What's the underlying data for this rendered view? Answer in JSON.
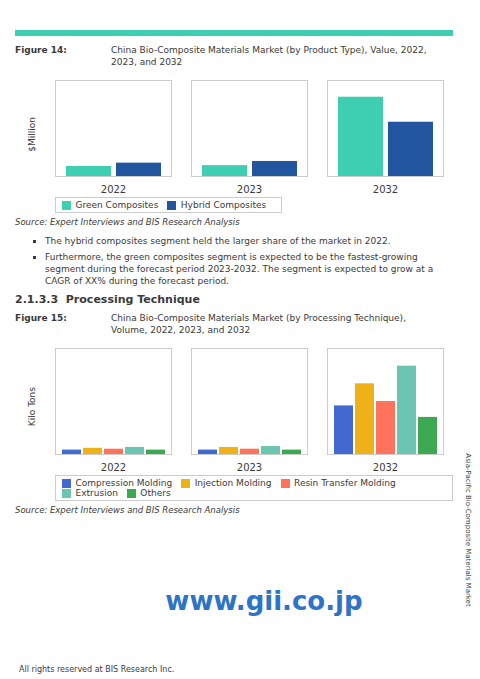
{
  "chart_data": [
    {
      "type": "bar",
      "title": "Figure 14:",
      "subtitle": "China Bio-Composite Materials Market (by Product Type), Value, 2022,\n2023, and 2032",
      "ylabel": "$Million",
      "categories": [
        "2022",
        "2023",
        "2032"
      ],
      "series": [
        {
          "name": "Green Composites",
          "color": "#3ecfb2",
          "values": [
            12,
            13,
            95
          ]
        },
        {
          "name": "Hybrid Composites",
          "color": "#2255a0",
          "values": [
            16,
            18,
            65
          ]
        }
      ],
      "ylim": [
        0,
        115
      ],
      "tick_labels": "x",
      "grid": false,
      "legend": "bottom",
      "annotations": [
        "Source: Expert Interviews and BIS Research Analysis",
        "The hybrid composites segment held the larger share of the market in 2022.",
        "Furthermore, the green composites segment is expected to be the fastest-growing segment during the forecast period 2023-2032. The segment is expected to grow at a CAGR of XX% during the forecast period."
      ]
    },
    {
      "type": "bar",
      "title": "Figure 15:",
      "subtitle": "China Bio-Composite Materials Market (by Processing Technique),\nVolume, 2022, 2023, and 2032",
      "ylabel": "Kilo Tons",
      "categories": [
        "2022",
        "2023",
        "2032"
      ],
      "series": [
        {
          "name": "Compression Molding",
          "values": [
            5,
            5,
            55
          ]
        },
        {
          "name": "Injection Molding",
          "values": [
            7,
            8,
            80
          ]
        },
        {
          "name": "Resin Transfer Molding",
          "values": [
            6,
            6,
            60
          ]
        },
        {
          "name": "Extrusion",
          "values": [
            8,
            9,
            100
          ]
        },
        {
          "name": "Others",
          "values": [
            5,
            5,
            42
          ]
        }
      ],
      "ylim": [
        0,
        120
      ],
      "tick_labels": "x",
      "grid": false,
      "legend": "bottom",
      "annotations": [
        "2.1.3.3  Processing Technique",
        "Source: Expert Interviews and BIS Research Analysis",
        "www.gii.co.jp",
        "Asia-Pacific Bio-Composite Materials Market",
        "All rights reserved at BIS Research Inc."
      ]
    }
  ]
}
